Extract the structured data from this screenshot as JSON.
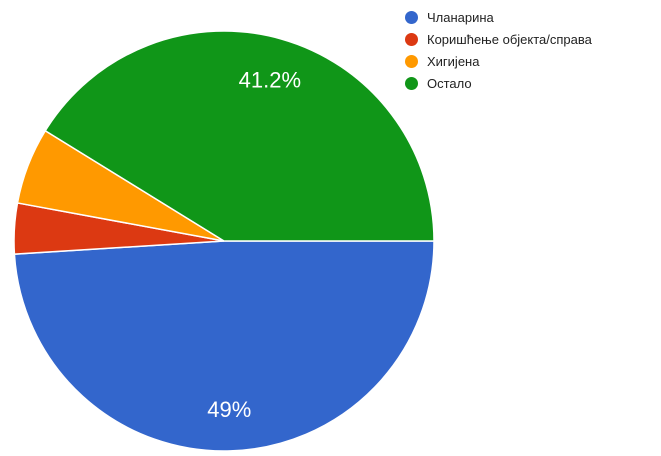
{
  "chart_data": {
    "type": "pie",
    "title": "",
    "start_direction": "east",
    "slices": [
      {
        "label": "Чланарина",
        "value": 49,
        "color": "#3366cc",
        "data_label": "49%"
      },
      {
        "label": "Коришћење објекта/справа",
        "value": 3.9,
        "color": "#dc3912",
        "data_label": ""
      },
      {
        "label": "Хигијена",
        "value": 5.9,
        "color": "#ff9900",
        "data_label": ""
      },
      {
        "label": "Остало",
        "value": 41.2,
        "color": "#109618",
        "data_label": "41.2%"
      }
    ],
    "legend": {
      "position": "top-right",
      "entries": [
        "Чланарина",
        "Коришћење објекта/справа",
        "Хигијена",
        "Остало"
      ]
    }
  }
}
